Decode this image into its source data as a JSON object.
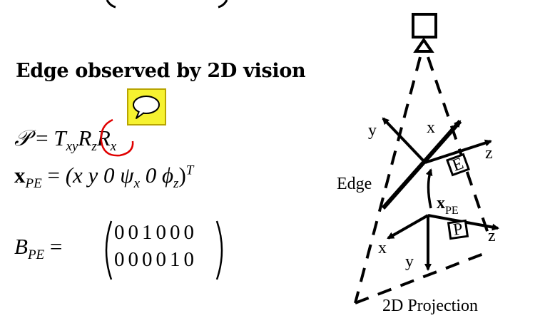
{
  "heading": "Edge observed by 2D vision",
  "equations": {
    "eq1_lhs": "𝒫",
    "eq1_rhs_T": "T",
    "eq1_rhs_T_sub": "xy",
    "eq1_rhs_R1": "R",
    "eq1_rhs_R1_sub": "z",
    "eq1_rhs_R2": "R",
    "eq1_rhs_R2_sub": "x",
    "eq2_lhs": "x",
    "eq2_lhs_sub": "PE",
    "eq2_rhs": "(x y 0 ψ",
    "eq2_rhs_psi_sub": "x",
    "eq2_rhs_mid": " 0 ϕ",
    "eq2_rhs_phi_sub": "z",
    "eq2_rhs_close": ")",
    "eq2_rhs_sup": "T",
    "eq3_lhs": "B",
    "eq3_lhs_sub": "PE",
    "matrix_row1": "001000",
    "matrix_row2": "000010"
  },
  "diagram": {
    "edge_label": "Edge",
    "x_pe_label": "x",
    "x_pe_sub": "PE",
    "upper_frame": {
      "y": "y",
      "x": "x",
      "z": "z",
      "box": "E"
    },
    "lower_frame": {
      "x": "x",
      "y": "y",
      "z": "z",
      "box": "P"
    },
    "projection_label": "2D Projection"
  },
  "annotation": {
    "mark_color": "#e00000",
    "icon": "speech-bubble-icon",
    "icon_color": "#f6f230"
  }
}
